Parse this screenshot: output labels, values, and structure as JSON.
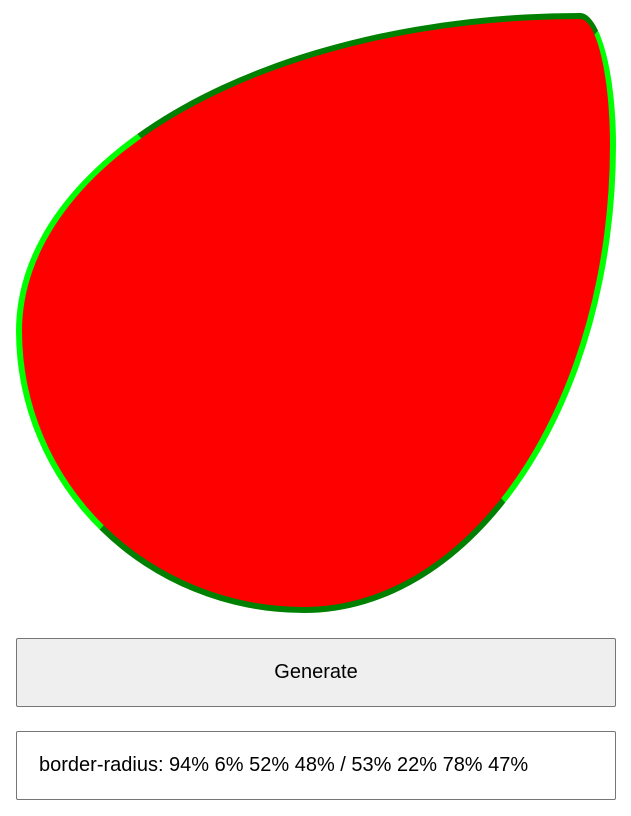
{
  "shape": {
    "fill_color": "#ff0000",
    "border_colors": {
      "top": "#008000",
      "bottom": "#008000",
      "left": "#00ff00",
      "right": "#00ff00"
    }
  },
  "controls": {
    "generate_label": "Generate"
  },
  "output": {
    "text": "border-radius: 94% 6% 52% 48% / 53% 22% 78% 47%"
  }
}
